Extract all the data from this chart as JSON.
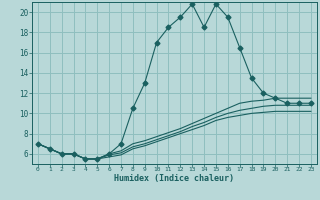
{
  "title": "",
  "xlabel": "Humidex (Indice chaleur)",
  "ylabel": "",
  "background_color": "#b8d8d8",
  "grid_color": "#8fbfbf",
  "line_color": "#1a6060",
  "series": [
    {
      "x": [
        0,
        1,
        2,
        3,
        4,
        5,
        6,
        7,
        8,
        9,
        10,
        11,
        12,
        13,
        14,
        15,
        16,
        17,
        18,
        19,
        20,
        21,
        22,
        23
      ],
      "y": [
        7,
        6.5,
        6,
        6,
        5.5,
        5.5,
        6.0,
        7.0,
        10.5,
        13.0,
        17.0,
        18.5,
        19.5,
        20.8,
        18.5,
        20.8,
        19.5,
        16.5,
        13.5,
        12.0,
        11.5,
        11.0,
        11.0,
        11.0
      ],
      "marker": "D",
      "markersize": 2.5,
      "linestyle": "-"
    },
    {
      "x": [
        0,
        1,
        2,
        3,
        4,
        5,
        6,
        7,
        8,
        9,
        10,
        11,
        12,
        13,
        14,
        15,
        16,
        17,
        18,
        19,
        20,
        21,
        22,
        23
      ],
      "y": [
        7,
        6.5,
        6,
        6,
        5.5,
        5.5,
        6.0,
        6.3,
        7.0,
        7.3,
        7.7,
        8.1,
        8.5,
        9.0,
        9.5,
        10.0,
        10.5,
        11.0,
        11.2,
        11.3,
        11.5,
        11.5,
        11.5,
        11.5
      ],
      "marker": null,
      "markersize": 0,
      "linestyle": "-"
    },
    {
      "x": [
        0,
        1,
        2,
        3,
        4,
        5,
        6,
        7,
        8,
        9,
        10,
        11,
        12,
        13,
        14,
        15,
        16,
        17,
        18,
        19,
        20,
        21,
        22,
        23
      ],
      "y": [
        7,
        6.5,
        6,
        6,
        5.5,
        5.5,
        5.9,
        6.1,
        6.7,
        7.0,
        7.4,
        7.8,
        8.2,
        8.7,
        9.1,
        9.6,
        10.0,
        10.3,
        10.5,
        10.7,
        10.8,
        10.8,
        10.8,
        10.8
      ],
      "marker": null,
      "markersize": 0,
      "linestyle": "-"
    },
    {
      "x": [
        0,
        1,
        2,
        3,
        4,
        5,
        6,
        7,
        8,
        9,
        10,
        11,
        12,
        13,
        14,
        15,
        16,
        17,
        18,
        19,
        20,
        21,
        22,
        23
      ],
      "y": [
        7,
        6.5,
        6,
        6,
        5.5,
        5.5,
        5.7,
        5.9,
        6.5,
        6.8,
        7.2,
        7.6,
        8.0,
        8.4,
        8.8,
        9.3,
        9.6,
        9.8,
        10.0,
        10.1,
        10.2,
        10.2,
        10.2,
        10.2
      ],
      "marker": null,
      "markersize": 0,
      "linestyle": "-"
    }
  ],
  "xlim": [
    -0.5,
    23.5
  ],
  "ylim": [
    5.0,
    21.0
  ],
  "yticks": [
    6,
    8,
    10,
    12,
    14,
    16,
    18,
    20
  ],
  "xticks": [
    0,
    1,
    2,
    3,
    4,
    5,
    6,
    7,
    8,
    9,
    10,
    11,
    12,
    13,
    14,
    15,
    16,
    17,
    18,
    19,
    20,
    21,
    22,
    23
  ],
  "figsize": [
    3.2,
    2.0
  ],
  "dpi": 100
}
